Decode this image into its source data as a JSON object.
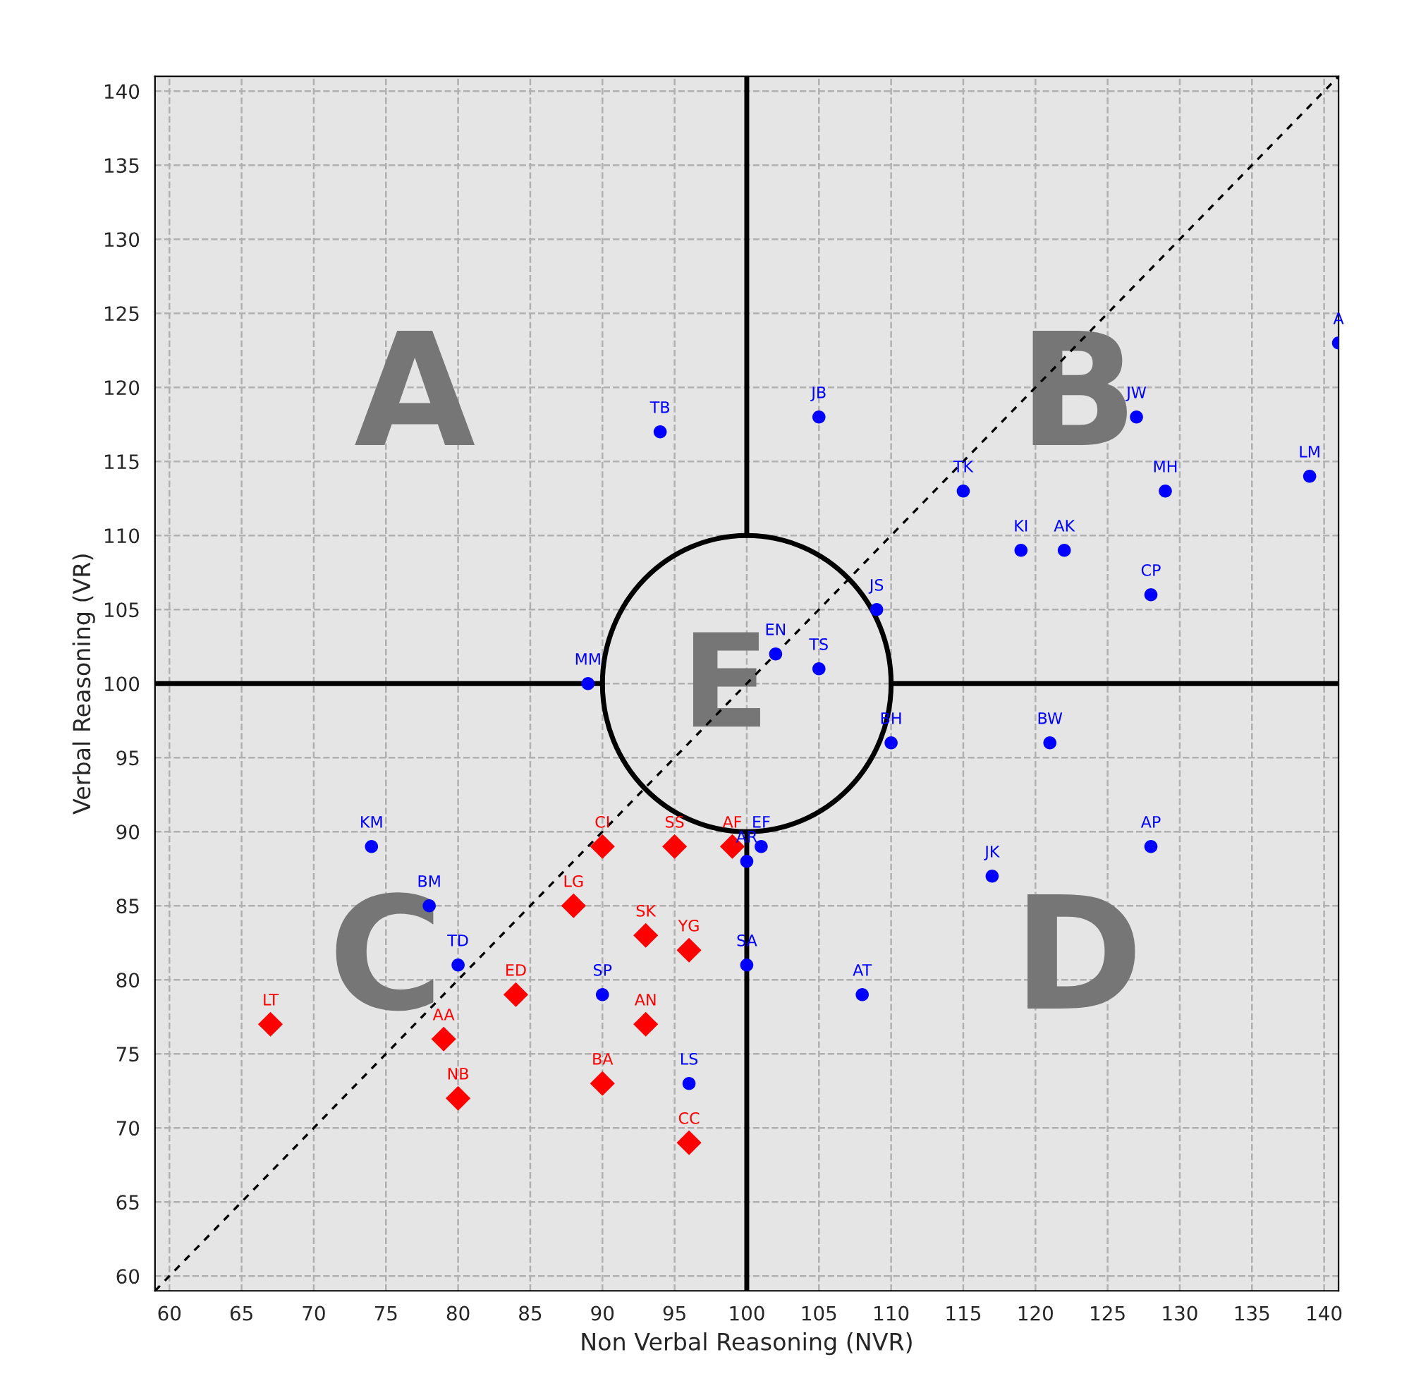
{
  "chart_data": {
    "type": "scatter",
    "xlabel": "Non Verbal Reasoning (NVR)",
    "ylabel": "Verbal Reasoning (VR)",
    "xlim": [
      59,
      141
    ],
    "ylim": [
      59,
      141
    ],
    "xticks": [
      60,
      65,
      70,
      75,
      80,
      85,
      90,
      95,
      100,
      105,
      110,
      115,
      120,
      125,
      130,
      135,
      140
    ],
    "yticks": [
      60,
      65,
      70,
      75,
      80,
      85,
      90,
      95,
      100,
      105,
      110,
      115,
      120,
      125,
      130,
      135,
      140
    ],
    "grid": true,
    "legend": false,
    "series": [
      {
        "type": "line",
        "color": "#000000",
        "line_style": "dashed",
        "x": [
          59,
          141
        ],
        "values": [
          59,
          141
        ]
      },
      {
        "type": "line",
        "color": "#000000",
        "line_style": "solid",
        "x": [
          100,
          100
        ],
        "values": [
          110,
          141
        ]
      },
      {
        "type": "line",
        "color": "#000000",
        "line_style": "solid",
        "x": [
          100,
          100
        ],
        "values": [
          59,
          90
        ]
      },
      {
        "type": "line",
        "color": "#000000",
        "line_style": "solid",
        "x": [
          59,
          90
        ],
        "values": [
          100,
          100
        ]
      },
      {
        "type": "line",
        "color": "#000000",
        "line_style": "solid",
        "x": [
          110,
          141
        ],
        "values": [
          100,
          100
        ]
      },
      {
        "marker": "circle",
        "color": "#0000ff",
        "x": [
          94,
          105,
          141,
          127,
          115,
          129,
          139,
          119,
          122,
          109,
          128,
          102,
          105,
          89,
          110,
          121,
          74,
          101,
          100,
          128,
          117,
          78,
          80,
          100,
          90,
          108,
          96
        ],
        "values": [
          117,
          118,
          123,
          118,
          113,
          113,
          114,
          109,
          109,
          105,
          106,
          102,
          101,
          100,
          96,
          96,
          89,
          89,
          88,
          89,
          87,
          85,
          81,
          81,
          79,
          79,
          73
        ]
      },
      {
        "marker": "diamond",
        "color": "#ff0000",
        "x": [
          90,
          95,
          99,
          88,
          93,
          96,
          84,
          67,
          79,
          93,
          90,
          80,
          96
        ],
        "values": [
          89,
          89,
          89,
          85,
          83,
          82,
          79,
          77,
          76,
          77,
          73,
          72,
          69
        ]
      }
    ],
    "annotations": [
      "A",
      "B",
      "C",
      "D",
      "E",
      {
        "text": "TB",
        "x": 94,
        "y": 117
      },
      {
        "text": "JB",
        "x": 105,
        "y": 118
      },
      {
        "text": "A",
        "x": 141,
        "y": 123
      },
      {
        "text": "JW",
        "x": 127,
        "y": 118
      },
      {
        "text": "TK",
        "x": 115,
        "y": 113
      },
      {
        "text": "MH",
        "x": 129,
        "y": 113
      },
      {
        "text": "LM",
        "x": 139,
        "y": 114
      },
      {
        "text": "KI",
        "x": 119,
        "y": 109
      },
      {
        "text": "AK",
        "x": 122,
        "y": 109
      },
      {
        "text": "JS",
        "x": 109,
        "y": 105
      },
      {
        "text": "CP",
        "x": 128,
        "y": 106
      },
      {
        "text": "EN",
        "x": 102,
        "y": 102
      },
      {
        "text": "TS",
        "x": 105,
        "y": 101
      },
      {
        "text": "MM",
        "x": 89,
        "y": 100
      },
      {
        "text": "BH",
        "x": 110,
        "y": 96
      },
      {
        "text": "BW",
        "x": 121,
        "y": 96
      },
      {
        "text": "KM",
        "x": 74,
        "y": 89
      },
      {
        "text": "EF",
        "x": 101,
        "y": 89
      },
      {
        "text": "AR",
        "x": 100,
        "y": 88
      },
      {
        "text": "AP",
        "x": 128,
        "y": 89
      },
      {
        "text": "JK",
        "x": 117,
        "y": 87
      },
      {
        "text": "BM",
        "x": 78,
        "y": 85
      },
      {
        "text": "TD",
        "x": 80,
        "y": 81
      },
      {
        "text": "SA",
        "x": 100,
        "y": 81
      },
      {
        "text": "SP",
        "x": 90,
        "y": 79
      },
      {
        "text": "AT",
        "x": 108,
        "y": 79
      },
      {
        "text": "LS",
        "x": 96,
        "y": 73
      },
      {
        "text": "CI",
        "x": 90,
        "y": 89
      },
      {
        "text": "SS",
        "x": 95,
        "y": 89
      },
      {
        "text": "AF",
        "x": 99,
        "y": 89
      },
      {
        "text": "LG",
        "x": 88,
        "y": 85
      },
      {
        "text": "SK",
        "x": 93,
        "y": 83
      },
      {
        "text": "YG",
        "x": 96,
        "y": 82
      },
      {
        "text": "ED",
        "x": 84,
        "y": 79
      },
      {
        "text": "LT",
        "x": 67,
        "y": 77
      },
      {
        "text": "AA",
        "x": 79,
        "y": 76
      },
      {
        "text": "AN",
        "x": 93,
        "y": 77
      },
      {
        "text": "BA",
        "x": 90,
        "y": 73
      },
      {
        "text": "NB",
        "x": 80,
        "y": 72
      },
      {
        "text": "CC",
        "x": 96,
        "y": 69
      }
    ]
  }
}
